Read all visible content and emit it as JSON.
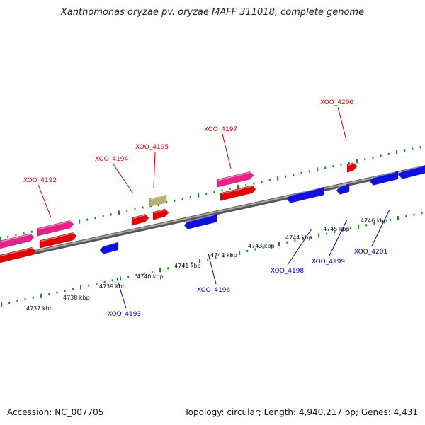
{
  "title": "Xanthomonas oryzae pv. oryzae MAFF 311018, complete genome",
  "footer": {
    "accession": "Accession: NC_007705",
    "summary": "Topology: circular; Length: 4,940,217 bp; Genes: 4,431"
  },
  "colors": {
    "forward_gene": "#e00000",
    "forward_pink": "#e8208a",
    "reverse_gene": "#1010e0",
    "other_feature": "#b8b070",
    "tick_mark": "#1a8a1a",
    "backbone": "#888888",
    "label_forward": "#d00000",
    "label_reverse": "#0000c0"
  },
  "scale_ticks": [
    "4737 kbp",
    "4738 kbp",
    "4739 kbp",
    "4740 kbp",
    "4741 kbp",
    "4742 kbp",
    "4743 kbp",
    "4744 kbp",
    "4745 kbp",
    "4746 kbp"
  ],
  "gene_labels": [
    {
      "text": "XOO_4192",
      "strand": "forward"
    },
    {
      "text": "XOO_4193",
      "strand": "reverse"
    },
    {
      "text": "XOO_4194",
      "strand": "forward"
    },
    {
      "text": "XOO_4195",
      "strand": "forward"
    },
    {
      "text": "XOO_4196",
      "strand": "reverse"
    },
    {
      "text": "XOO_4197",
      "strand": "forward"
    },
    {
      "text": "XOO_4198",
      "strand": "reverse"
    },
    {
      "text": "XOO_4199",
      "strand": "reverse"
    },
    {
      "text": "XOO_4200",
      "strand": "forward"
    },
    {
      "text": "XOO_4201",
      "strand": "reverse"
    }
  ]
}
